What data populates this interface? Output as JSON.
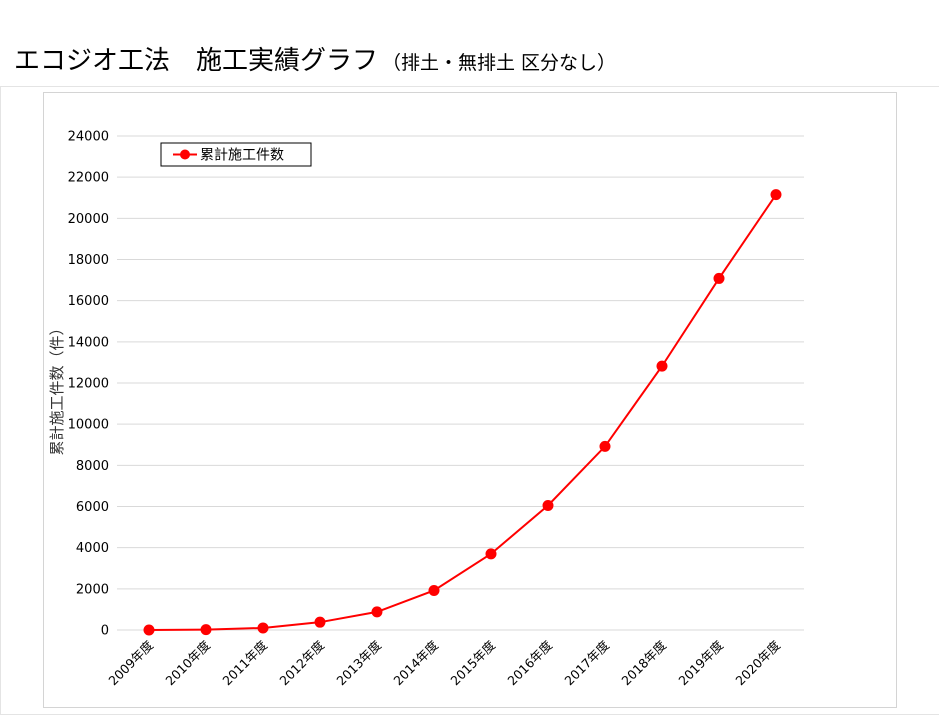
{
  "page": {
    "title": "エコジオ工法　施工実績グラフ",
    "subtitle": "（排土・無排土 区分なし）"
  },
  "colors": {
    "series": "#ff0000",
    "grid": "#d9d9d9",
    "frame": "#d4d4d4"
  },
  "chart_data": {
    "type": "line",
    "title": "",
    "xlabel": "",
    "ylabel": "累計施工件数（件）",
    "categories": [
      "2009年度",
      "2010年度",
      "2011年度",
      "2012年度",
      "2013年度",
      "2014年度",
      "2015年度",
      "2016年度",
      "2017年度",
      "2018年度",
      "2019年度",
      "2020年度"
    ],
    "series": [
      {
        "name": "累計施工件数",
        "values": [
          0,
          20,
          100,
          380,
          880,
          1920,
          3700,
          6050,
          8920,
          12820,
          17080,
          21150
        ]
      }
    ],
    "ylim": [
      0,
      24000
    ],
    "yticks": [
      "0",
      "2000",
      "4000",
      "6000",
      "8000",
      "10000",
      "12000",
      "14000",
      "16000",
      "18000",
      "20000",
      "22000",
      "24000"
    ],
    "grid": true,
    "legend_position": "top-left",
    "markers": "circle"
  }
}
